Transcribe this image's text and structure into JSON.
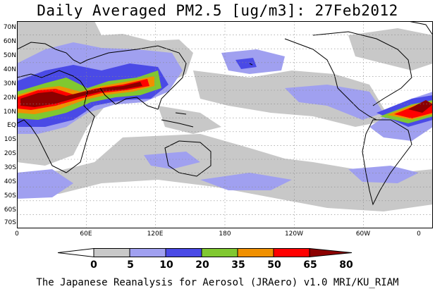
{
  "title": "Daily Averaged PM2.5 [ug/m3]: 27Feb2012",
  "map": {
    "lat_labels": [
      "70N",
      "60N",
      "50N",
      "40N",
      "30N",
      "20N",
      "10N",
      "EQ",
      "10S",
      "20S",
      "30S",
      "40S",
      "50S",
      "60S",
      "70S"
    ],
    "lon_labels": [
      "0",
      "60E",
      "120E",
      "180",
      "120W",
      "60W",
      "0"
    ],
    "colors": {
      "ocean_background": "#ffffff",
      "coastline": "#000000",
      "gridline": "#888888"
    }
  },
  "legend": {
    "labels": [
      "0",
      "5",
      "10",
      "20",
      "35",
      "50",
      "65",
      "80"
    ],
    "colors": [
      "#ffffff",
      "#c8c8c8",
      "#a0a0f0",
      "#4a4ae6",
      "#80c830",
      "#f09000",
      "#ff0000",
      "#8c0000"
    ]
  },
  "credit": "The Japanese Reanalysis for Aerosol (JRAero) v1.0 MRI/KU_RIAM"
}
